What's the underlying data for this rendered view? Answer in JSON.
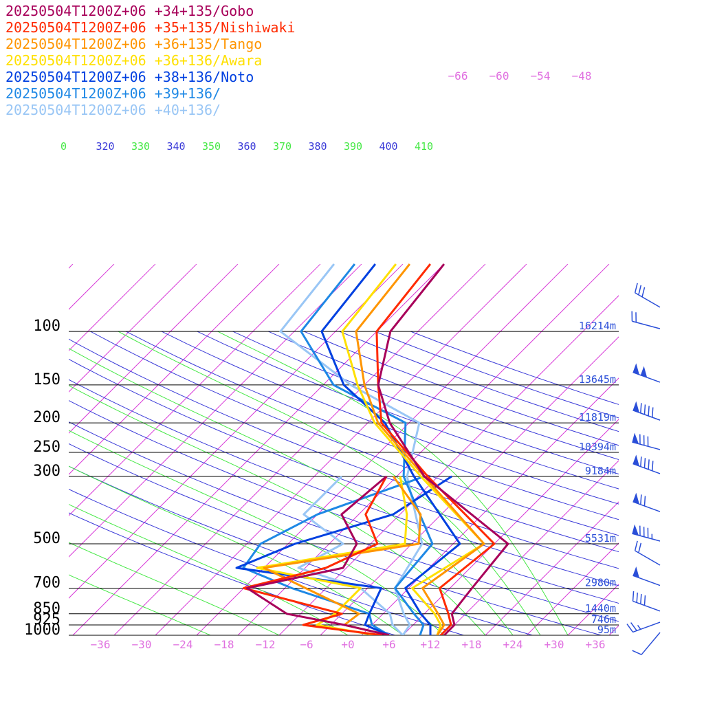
{
  "chart_data": {
    "type": "line",
    "title": "",
    "xlabel": "",
    "ylabel": "",
    "pressure_ticks": [
      100,
      150,
      200,
      250,
      300,
      500,
      700,
      850,
      925,
      1000
    ],
    "pressure_tick_labels": [
      "100",
      "150",
      "200",
      "250",
      "300",
      "500",
      "700",
      "850",
      "925",
      "1000"
    ],
    "height_labels": [
      {
        "p": 100,
        "label": "16214m"
      },
      {
        "p": 150,
        "label": "13645m"
      },
      {
        "p": 200,
        "label": "11819m"
      },
      {
        "p": 250,
        "label": "10394m"
      },
      {
        "p": 300,
        "label": "9184m"
      },
      {
        "p": 500,
        "label": "5531m"
      },
      {
        "p": 700,
        "label": "2980m"
      },
      {
        "p": 850,
        "label": "1440m"
      },
      {
        "p": 925,
        "label": "746m"
      },
      {
        "p": 1000,
        "label": "95m"
      }
    ],
    "temperature_ticks": [
      -36,
      -30,
      -24,
      -18,
      -12,
      -6,
      0,
      6,
      12,
      18,
      24,
      30,
      36
    ],
    "temperature_tick_labels": [
      "−36",
      "−30",
      "−24",
      "−18",
      "−12",
      "−6",
      "+0",
      "+6",
      "+12",
      "+18",
      "+24",
      "+30",
      "+36"
    ],
    "top_isotherm_labels": [
      "−66",
      "−60",
      "−54",
      "−48"
    ],
    "theta_labels": [
      "0",
      "320",
      "330",
      "340",
      "350",
      "360",
      "370",
      "380",
      "390",
      "400",
      "410"
    ],
    "series": [
      {
        "name": "20250504T1200Z+06 +34+135/Gobo",
        "color": "#a8005a",
        "temperature": [
          [
            1000,
            14
          ],
          [
            925,
            14
          ],
          [
            850,
            12
          ],
          [
            700,
            11.2
          ],
          [
            500,
            10
          ],
          [
            300,
            -12
          ],
          [
            200,
            -24.8
          ],
          [
            150,
            -32
          ],
          [
            100,
            -38
          ]
        ],
        "dewpoint": [
          [
            1000,
            6
          ],
          [
            925,
            -2
          ],
          [
            850,
            -12
          ],
          [
            700,
            -21.5
          ],
          [
            600,
            -10.5
          ],
          [
            500,
            -12
          ],
          [
            400,
            -18.5
          ],
          [
            300,
            -17.5
          ]
        ]
      },
      {
        "name": "20250504T1200Z+06 +35+135/Nishiwaki",
        "color": "#ff2a00",
        "temperature": [
          [
            1000,
            13.5
          ],
          [
            925,
            13.5
          ],
          [
            850,
            11.5
          ],
          [
            700,
            6.5
          ],
          [
            500,
            8
          ],
          [
            300,
            -11.5
          ],
          [
            200,
            -26
          ],
          [
            150,
            -32
          ],
          [
            100,
            -40
          ]
        ],
        "dewpoint": [
          [
            1000,
            5
          ],
          [
            925,
            -8
          ],
          [
            850,
            -4
          ],
          [
            700,
            -22
          ],
          [
            600,
            -13
          ],
          [
            500,
            -9
          ],
          [
            400,
            -15
          ],
          [
            300,
            -17.5
          ]
        ]
      },
      {
        "name": "20250504T1200Z+06 +36+135/Tango",
        "color": "#ff9500",
        "temperature": [
          [
            1000,
            13
          ],
          [
            925,
            12.5
          ],
          [
            850,
            10
          ],
          [
            700,
            4
          ],
          [
            500,
            6.5
          ],
          [
            300,
            -12
          ],
          [
            200,
            -26.5
          ],
          [
            150,
            -34
          ],
          [
            100,
            -43
          ]
        ],
        "dewpoint": [
          [
            1000,
            6
          ],
          [
            925,
            -2
          ],
          [
            850,
            -1.5
          ],
          [
            700,
            -13
          ],
          [
            600,
            -22
          ],
          [
            500,
            -3
          ],
          [
            400,
            -7
          ],
          [
            300,
            -16.5
          ]
        ]
      },
      {
        "name": "20250504T1200Z+06 +36+136/Awara",
        "color": "#ffe000",
        "temperature": [
          [
            1000,
            13
          ],
          [
            925,
            12
          ],
          [
            850,
            9.5
          ],
          [
            700,
            2.5
          ],
          [
            500,
            6.5
          ],
          [
            300,
            -12.5
          ],
          [
            200,
            -27
          ],
          [
            150,
            -35
          ],
          [
            100,
            -45
          ]
        ],
        "dewpoint": [
          [
            1000,
            4
          ],
          [
            925,
            -6
          ],
          [
            850,
            -5
          ],
          [
            700,
            -5
          ],
          [
            600,
            -23
          ],
          [
            500,
            -5
          ],
          [
            400,
            -9
          ],
          [
            300,
            -15.5
          ]
        ]
      },
      {
        "name": "20250504T1200Z+06 +38+136/Noto",
        "color": "#0040e0",
        "temperature": [
          [
            1000,
            12
          ],
          [
            925,
            10.5
          ],
          [
            850,
            7.5
          ],
          [
            700,
            1.5
          ],
          [
            500,
            3
          ],
          [
            300,
            -13.5
          ],
          [
            200,
            -25.5
          ],
          [
            150,
            -37
          ],
          [
            100,
            -48
          ]
        ],
        "dewpoint": [
          [
            1000,
            6
          ],
          [
            925,
            1
          ],
          [
            850,
            0
          ],
          [
            700,
            -2
          ],
          [
            600,
            -26
          ],
          [
            500,
            -21
          ],
          [
            400,
            -11
          ],
          [
            300,
            -8
          ]
        ]
      },
      {
        "name": "20250504T1200Z+06 +39+136/",
        "color": "#1e88e5",
        "temperature": [
          [
            1000,
            10.5
          ],
          [
            925,
            9.5
          ],
          [
            850,
            6.5
          ],
          [
            700,
            0
          ],
          [
            500,
            -1
          ],
          [
            300,
            -15
          ],
          [
            200,
            -22.5
          ],
          [
            150,
            -38.5
          ],
          [
            100,
            -51
          ]
        ],
        "dewpoint": [
          [
            1000,
            6
          ],
          [
            925,
            2
          ],
          [
            850,
            0
          ],
          [
            700,
            -15
          ],
          [
            600,
            -25
          ],
          [
            500,
            -26
          ],
          [
            400,
            -22
          ],
          [
            300,
            -12
          ]
        ]
      },
      {
        "name": "20250504T1200Z+06 +40+136/",
        "color": "#99c6f5",
        "temperature": [
          [
            1000,
            8
          ],
          [
            925,
            7.5
          ],
          [
            850,
            5
          ],
          [
            700,
            0
          ],
          [
            500,
            -2.5
          ],
          [
            300,
            -14.5
          ],
          [
            200,
            -20.5
          ],
          [
            150,
            -36
          ],
          [
            100,
            -54
          ]
        ],
        "dewpoint": [
          [
            1000,
            8
          ],
          [
            925,
            5
          ],
          [
            850,
            3
          ],
          [
            700,
            -5
          ],
          [
            600,
            -17
          ],
          [
            500,
            -14
          ],
          [
            400,
            -24
          ],
          [
            300,
            -24
          ]
        ]
      }
    ],
    "wind_barbs": [
      {
        "p": 85,
        "speed_kt": 30,
        "from_deg": 300
      },
      {
        "p": 100,
        "speed_kt": 20,
        "from_deg": 285
      },
      {
        "p": 150,
        "speed_kt": 100,
        "from_deg": 290
      },
      {
        "p": 200,
        "speed_kt": 90,
        "from_deg": 290
      },
      {
        "p": 250,
        "speed_kt": 80,
        "from_deg": 285
      },
      {
        "p": 300,
        "speed_kt": 90,
        "from_deg": 290
      },
      {
        "p": 400,
        "speed_kt": 70,
        "from_deg": 290
      },
      {
        "p": 500,
        "speed_kt": 85,
        "from_deg": 285
      },
      {
        "p": 600,
        "speed_kt": 20,
        "from_deg": 300
      },
      {
        "p": 700,
        "speed_kt": 50,
        "from_deg": 290
      },
      {
        "p": 850,
        "speed_kt": 40,
        "from_deg": 290
      },
      {
        "p": 925,
        "speed_kt": 25,
        "from_deg": 250
      },
      {
        "p": 1000,
        "speed_kt": 10,
        "from_deg": 220
      }
    ]
  },
  "colors": {
    "isobar": "#000000",
    "isotherm": "#d83ad8",
    "dry_adiabat": "#3a3ad8",
    "moist_adiabat": "#44e844",
    "height_label": "#2a4ed8",
    "temperature_label": "#e070e0",
    "wind_barb": "#2a4ed8"
  }
}
